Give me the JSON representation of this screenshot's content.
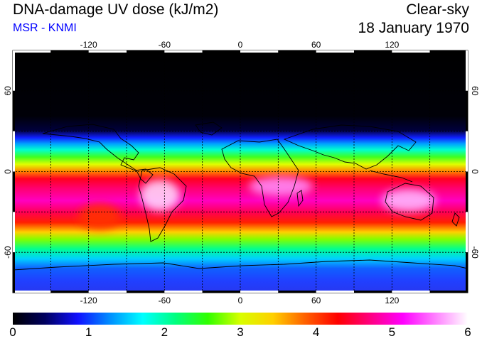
{
  "header": {
    "title": "DNA-damage UV dose (kJ/m2)",
    "subtitle": "MSR - KNMI",
    "condition": "Clear-sky",
    "date": "18 January 1970",
    "subtitle_color": "#0000ff"
  },
  "map": {
    "lon_ticks": [
      -120,
      -60,
      0,
      60,
      120
    ],
    "lat_ticks": [
      60,
      0,
      -60
    ],
    "lon_range": [
      -180,
      180
    ],
    "lat_range": [
      -90,
      90
    ],
    "grid": "dashed",
    "projection": "equirectangular"
  },
  "colorbar": {
    "min": 0,
    "max": 6,
    "labels": [
      "0",
      "1",
      "2",
      "3",
      "4",
      "5",
      "6"
    ],
    "colors": [
      "#000000",
      "#000060",
      "#1010ff",
      "#0090ff",
      "#00ffff",
      "#00ff80",
      "#30ff00",
      "#d8ff00",
      "#ffd000",
      "#ff6000",
      "#ff0000",
      "#ff0080",
      "#ff00ff",
      "#ff80ff",
      "#ffffff"
    ]
  }
}
